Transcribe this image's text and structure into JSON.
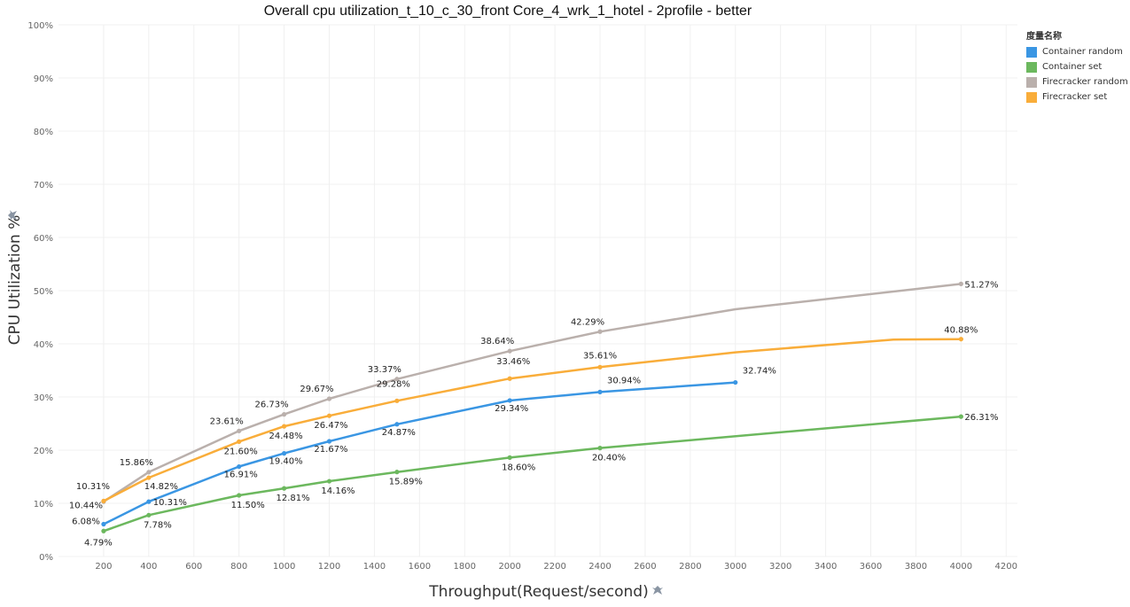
{
  "chart_data": {
    "type": "line",
    "title": "Overall cpu utilization_t_10_c_30_front Core_4_wrk_1_hotel - 2profile - better",
    "xlabel": "Throughput(Request/second)",
    "ylabel": "CPU Utilization %",
    "xlim": [
      0,
      4250
    ],
    "ylim": [
      0,
      100
    ],
    "x_ticks": [
      200,
      400,
      600,
      800,
      1000,
      1200,
      1400,
      1600,
      1800,
      2000,
      2200,
      2400,
      2600,
      2800,
      3000,
      3200,
      3400,
      3600,
      3800,
      4000,
      4200
    ],
    "y_ticks": [
      0,
      10,
      20,
      30,
      40,
      50,
      60,
      70,
      80,
      90,
      100
    ],
    "y_tick_suffix": "%",
    "legend_title": "度量名称",
    "legend_position": "top-right",
    "grid": true,
    "series": [
      {
        "name": "Container random",
        "color": "#3a96e3",
        "points": [
          {
            "x": 200,
            "y": 6.08,
            "label": "6.08%"
          },
          {
            "x": 400,
            "y": 10.31,
            "label": "10.31%"
          },
          {
            "x": 800,
            "y": 16.91,
            "label": "16.91%"
          },
          {
            "x": 1000,
            "y": 19.4,
            "label": "19.40%"
          },
          {
            "x": 1200,
            "y": 21.67,
            "label": "21.67%"
          },
          {
            "x": 1500,
            "y": 24.87,
            "label": "24.87%"
          },
          {
            "x": 2000,
            "y": 29.34,
            "label": "29.34%"
          },
          {
            "x": 2400,
            "y": 30.94,
            "label": "30.94%"
          },
          {
            "x": 3000,
            "y": 32.74,
            "label": "32.74%"
          }
        ]
      },
      {
        "name": "Container set",
        "color": "#6cb85e",
        "points": [
          {
            "x": 200,
            "y": 4.79,
            "label": "4.79%"
          },
          {
            "x": 400,
            "y": 7.78,
            "label": "7.78%"
          },
          {
            "x": 800,
            "y": 11.5,
            "label": "11.50%"
          },
          {
            "x": 1000,
            "y": 12.81,
            "label": "12.81%"
          },
          {
            "x": 1200,
            "y": 14.16,
            "label": "14.16%"
          },
          {
            "x": 1500,
            "y": 15.89,
            "label": "15.89%"
          },
          {
            "x": 2000,
            "y": 18.6,
            "label": "18.60%"
          },
          {
            "x": 2400,
            "y": 20.4,
            "label": "20.40%"
          },
          {
            "x": 4000,
            "y": 26.31,
            "label": "26.31%"
          }
        ]
      },
      {
        "name": "Firecracker random",
        "color": "#bab0ac",
        "points": [
          {
            "x": 200,
            "y": 10.31,
            "label": "10.31%"
          },
          {
            "x": 400,
            "y": 15.86,
            "label": "15.86%"
          },
          {
            "x": 800,
            "y": 23.61,
            "label": "23.61%"
          },
          {
            "x": 1000,
            "y": 26.73,
            "label": "26.73%"
          },
          {
            "x": 1200,
            "y": 29.67,
            "label": "29.67%"
          },
          {
            "x": 1500,
            "y": 33.37,
            "label": "33.37%"
          },
          {
            "x": 2000,
            "y": 38.64,
            "label": "38.64%"
          },
          {
            "x": 2400,
            "y": 42.29,
            "label": "42.29%"
          },
          {
            "x": 3000,
            "y": 46.5,
            "label": null
          },
          {
            "x": 4000,
            "y": 51.27,
            "label": "51.27%"
          }
        ]
      },
      {
        "name": "Firecracker set",
        "color": "#f9ad3a",
        "points": [
          {
            "x": 200,
            "y": 10.44,
            "label": "10.44%"
          },
          {
            "x": 400,
            "y": 14.82,
            "label": "14.82%"
          },
          {
            "x": 800,
            "y": 21.6,
            "label": "21.60%"
          },
          {
            "x": 1000,
            "y": 24.48,
            "label": "24.48%"
          },
          {
            "x": 1200,
            "y": 26.47,
            "label": "26.47%"
          },
          {
            "x": 1500,
            "y": 29.28,
            "label": "29.28%"
          },
          {
            "x": 2000,
            "y": 33.46,
            "label": "33.46%"
          },
          {
            "x": 2400,
            "y": 35.61,
            "label": "35.61%"
          },
          {
            "x": 3000,
            "y": 38.4,
            "label": null
          },
          {
            "x": 3700,
            "y": 40.8,
            "label": null
          },
          {
            "x": 4000,
            "y": 40.88,
            "label": "40.88%"
          }
        ]
      }
    ]
  }
}
